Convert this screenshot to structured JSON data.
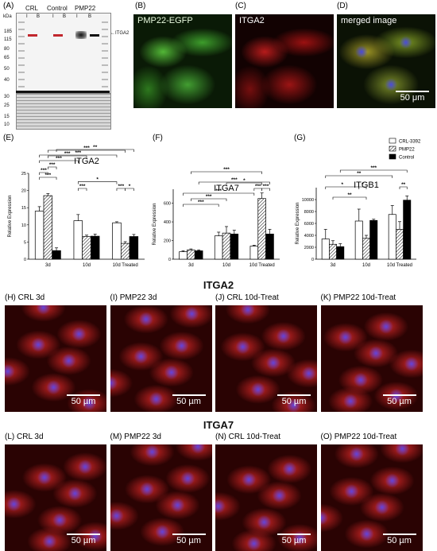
{
  "panels": {
    "A": "(A)",
    "B": "(B)",
    "C": "(C)",
    "D": "(D)",
    "E": "(E)",
    "F": "(F)",
    "G": "(G)",
    "H": "(H)",
    "I": "(I)",
    "J": "(J)",
    "K": "(K)",
    "L": "(L)",
    "M": "(M)",
    "N": "(N)",
    "O": "(O)"
  },
  "western": {
    "unit": "kDa",
    "groups": [
      "CRL",
      "Control",
      "PMP22"
    ],
    "lanes": [
      "I",
      "B",
      "I",
      "B",
      "I",
      "B"
    ],
    "markers_top": [
      "185",
      "115",
      "80",
      "65",
      "50",
      "40"
    ],
    "markers_bottom": [
      "30",
      "25",
      "15",
      "10"
    ],
    "band_label": "ITGA2"
  },
  "fluor": {
    "B": "PMP22-EGFP",
    "C": "ITGA2",
    "D": "merged image",
    "scale": "50 μm"
  },
  "chart_legend": [
    "CRL-3392",
    "PMP22",
    "Control"
  ],
  "chart_data": [
    {
      "type": "bar",
      "title": "ITGA2",
      "ylabel": "Relative Expression",
      "categories": [
        "3d",
        "10d",
        "10d Treated"
      ],
      "ylim": [
        0,
        25
      ],
      "yticks": [
        "0",
        "5",
        "10",
        "15",
        "20",
        "25"
      ],
      "series": [
        {
          "name": "CRL-3392",
          "values": [
            14,
            11.2,
            10.6
          ]
        },
        {
          "name": "PMP22",
          "values": [
            18.5,
            6.6,
            4.6
          ]
        },
        {
          "name": "Control",
          "values": [
            2.5,
            6.7,
            6.6
          ]
        }
      ],
      "errors": [
        [
          1.3,
          1.8,
          0.3
        ],
        [
          0.6,
          0.4,
          0.5
        ],
        [
          0.8,
          0.6,
          0.6
        ]
      ],
      "annotations": [
        "***",
        "***",
        "***",
        "*",
        "***",
        "*",
        "***",
        "***",
        "***",
        "***",
        "***",
        "***",
        "***",
        "**",
        "**",
        "*"
      ]
    },
    {
      "type": "bar",
      "title": "ITGA7",
      "ylabel": "Relative Expression",
      "categories": [
        "3d",
        "10d",
        "10d Treated"
      ],
      "ylim": [
        0,
        750
      ],
      "yticks": [
        "0",
        "200",
        "400",
        "600"
      ],
      "series": [
        {
          "name": "CRL-3392",
          "values": [
            80,
            250,
            140
          ]
        },
        {
          "name": "PMP22",
          "values": [
            100,
            280,
            650
          ]
        },
        {
          "name": "Control",
          "values": [
            90,
            270,
            270
          ]
        }
      ],
      "errors": [
        [
          10,
          40,
          10
        ],
        [
          10,
          70,
          60
        ],
        [
          10,
          40,
          50
        ]
      ],
      "annotations": [
        "***",
        "***",
        "***",
        "***",
        "*",
        "***",
        "***",
        "***",
        "***",
        "***"
      ]
    },
    {
      "type": "bar",
      "title": "ITGB1",
      "ylabel": "Relative Expression",
      "categories": [
        "3d",
        "10d",
        "10d Treated"
      ],
      "ylim": [
        0,
        12000
      ],
      "yticks": [
        "0",
        "2000",
        "4000",
        "6000",
        "8000",
        "10000"
      ],
      "series": [
        {
          "name": "CRL-3392",
          "values": [
            3400,
            6400,
            7500
          ]
        },
        {
          "name": "PMP22",
          "values": [
            2500,
            3500,
            5000
          ]
        },
        {
          "name": "Control",
          "values": [
            2100,
            6500,
            9900
          ]
        }
      ],
      "errors": [
        [
          1600,
          2000,
          1500
        ],
        [
          600,
          500,
          1300
        ],
        [
          500,
          200,
          700
        ]
      ],
      "annotations": [
        "***",
        "**",
        "**",
        "*",
        "*",
        "**"
      ]
    }
  ],
  "sections": {
    "itga2": "ITGA2",
    "itga7": "ITGA7"
  },
  "row_itga2": [
    {
      "id": "H",
      "caption": "CRL 3d"
    },
    {
      "id": "I",
      "caption": "PMP22 3d"
    },
    {
      "id": "J",
      "caption": "CRL 10d-Treat"
    },
    {
      "id": "K",
      "caption": "PMP22 10d-Treat"
    }
  ],
  "row_itga7": [
    {
      "id": "L",
      "caption": "CRL 3d"
    },
    {
      "id": "M",
      "caption": "PMP22 3d"
    },
    {
      "id": "N",
      "caption": "CRL 10d-Treat"
    },
    {
      "id": "O",
      "caption": "PMP22 10d-Treat"
    }
  ],
  "scale_text": "50 µm"
}
